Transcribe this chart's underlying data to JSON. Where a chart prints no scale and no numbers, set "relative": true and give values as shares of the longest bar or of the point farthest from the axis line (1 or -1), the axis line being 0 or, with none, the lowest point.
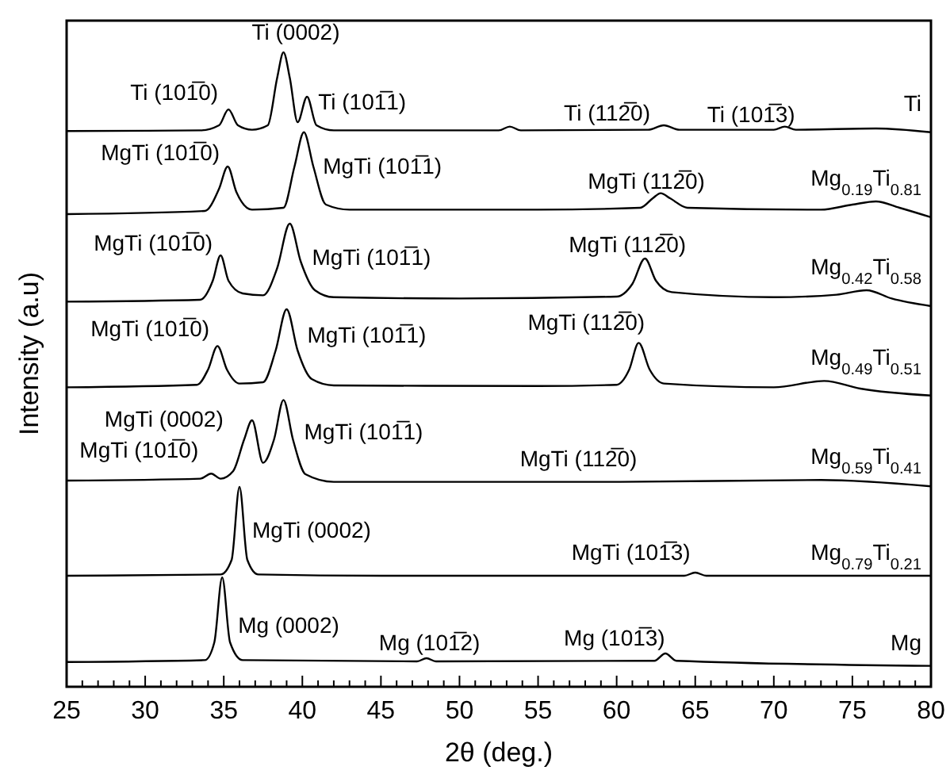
{
  "chart_data": {
    "type": "line",
    "relative": true,
    "xlabel": "2θ (deg.)",
    "ylabel": "Intensity (a.u)",
    "xlim": [
      25,
      80
    ],
    "xticks": [
      25,
      30,
      35,
      40,
      45,
      50,
      55,
      60,
      65,
      70,
      75,
      80
    ],
    "series": [
      {
        "name": "Ti",
        "color": "#000000",
        "x": [
          25,
          33.5,
          34.7,
          35.3,
          35.9,
          36.8,
          37.8,
          38.4,
          38.8,
          39.2,
          39.7,
          40.3,
          40.9,
          42,
          52.5,
          53.2,
          53.9,
          62,
          63,
          64,
          70,
          70.7,
          71.4,
          76.5,
          80
        ],
        "values": [
          0.876,
          0.877,
          0.885,
          0.91,
          0.885,
          0.878,
          0.885,
          0.96,
          1.0,
          0.96,
          0.89,
          0.93,
          0.885,
          0.877,
          0.877,
          0.883,
          0.877,
          0.878,
          0.885,
          0.878,
          0.878,
          0.883,
          0.878,
          0.88,
          0.874
        ]
      },
      {
        "name": "Mg$_{0.19}$Ti$_{0.81}$",
        "color": "#000000",
        "x": [
          25,
          33.8,
          34.7,
          35.25,
          35.8,
          36.8,
          38.8,
          39.5,
          40.1,
          40.7,
          41.5,
          43,
          55,
          61.5,
          62.3,
          62.8,
          63.4,
          64.5,
          73,
          75,
          76.5,
          78,
          80
        ],
        "values": [
          0.745,
          0.75,
          0.785,
          0.82,
          0.78,
          0.752,
          0.755,
          0.82,
          0.874,
          0.82,
          0.76,
          0.752,
          0.752,
          0.755,
          0.77,
          0.778,
          0.77,
          0.755,
          0.752,
          0.76,
          0.765,
          0.755,
          0.74
        ]
      },
      {
        "name": "Mg$_{0.42}$Ti$_{0.58}$",
        "color": "#000000",
        "x": [
          25,
          33.5,
          34.3,
          34.8,
          35.3,
          36.2,
          37.5,
          38.4,
          39.2,
          39.9,
          40.8,
          42,
          50,
          60,
          61,
          61.8,
          62.5,
          63.5,
          70,
          74,
          75.9,
          77.5,
          80
        ],
        "values": [
          0.607,
          0.61,
          0.64,
          0.68,
          0.64,
          0.62,
          0.617,
          0.66,
          0.73,
          0.67,
          0.625,
          0.614,
          0.612,
          0.615,
          0.635,
          0.675,
          0.64,
          0.622,
          0.614,
          0.618,
          0.625,
          0.612,
          0.6
        ]
      },
      {
        "name": "Mg$_{0.49}$Ti$_{0.51}$",
        "color": "#000000",
        "x": [
          25,
          33.3,
          34.0,
          34.6,
          35.2,
          36.0,
          37.5,
          38.3,
          39.0,
          39.7,
          40.6,
          42,
          55,
          60,
          60.8,
          61.4,
          62.1,
          63,
          70,
          73.2,
          75.5,
          80
        ],
        "values": [
          0.472,
          0.476,
          0.5,
          0.537,
          0.5,
          0.478,
          0.48,
          0.53,
          0.595,
          0.53,
          0.485,
          0.475,
          0.474,
          0.476,
          0.5,
          0.542,
          0.5,
          0.478,
          0.472,
          0.482,
          0.47,
          0.459
        ]
      },
      {
        "name": "Mg$_{0.59}$Ti$_{0.41}$",
        "color": "#000000",
        "x": [
          25,
          33.5,
          34.2,
          34.8,
          35.6,
          36.3,
          36.8,
          37.5,
          38.2,
          38.8,
          39.4,
          40.2,
          42,
          60,
          73,
          80
        ],
        "values": [
          0.325,
          0.328,
          0.336,
          0.328,
          0.34,
          0.39,
          0.42,
          0.353,
          0.39,
          0.452,
          0.39,
          0.335,
          0.323,
          0.323,
          0.326,
          0.316
        ]
      },
      {
        "name": "Mg$_{0.79}$Ti$_{0.21}$",
        "color": "#000000",
        "x": [
          25,
          34.8,
          35.5,
          36.0,
          36.5,
          37.2,
          45,
          64.3,
          65,
          65.7,
          80
        ],
        "values": [
          0.175,
          0.177,
          0.2,
          0.315,
          0.2,
          0.177,
          0.175,
          0.175,
          0.18,
          0.175,
          0.175
        ]
      },
      {
        "name": "Mg",
        "color": "#000000",
        "x": [
          25,
          33.8,
          34.4,
          34.9,
          35.4,
          36.2,
          47.3,
          47.9,
          48.5,
          62.4,
          63.1,
          63.8,
          80
        ],
        "values": [
          0.039,
          0.042,
          0.07,
          0.1725,
          0.07,
          0.042,
          0.04,
          0.045,
          0.04,
          0.041,
          0.0525,
          0.041,
          0.033
        ]
      }
    ],
    "annotations": [
      {
        "text": "Ti (0002)",
        "x": 38.8,
        "y": 1.0
      },
      {
        "text": "Ti (101̅0)",
        "x": 35.3,
        "y": 0.91
      },
      {
        "text": "Ti (101̅1)",
        "x": 40.3,
        "y": 0.93
      },
      {
        "text": "Ti (112̅0)",
        "x": 63,
        "y": 0.885
      },
      {
        "text": "Ti (101̅3)",
        "x": 70.7,
        "y": 0.883
      },
      {
        "text": "MgTi (101̅0)",
        "x": 35.25,
        "y": 0.82
      },
      {
        "text": "MgTi (101̅1)",
        "x": 40.1,
        "y": 0.874
      },
      {
        "text": "MgTi (112̅0)",
        "x": 62.8,
        "y": 0.778
      },
      {
        "text": "MgTi (101̅0)",
        "x": 34.8,
        "y": 0.68
      },
      {
        "text": "MgTi (101̅1)",
        "x": 39.2,
        "y": 0.73
      },
      {
        "text": "MgTi (112̅0)",
        "x": 61.8,
        "y": 0.675
      },
      {
        "text": "MgTi (101̅0)",
        "x": 34.6,
        "y": 0.537
      },
      {
        "text": "MgTi (101̅1)",
        "x": 39.0,
        "y": 0.595
      },
      {
        "text": "MgTi (112̅0)",
        "x": 61.4,
        "y": 0.542
      },
      {
        "text": "MgTi (0002)",
        "x": 36.8,
        "y": 0.42
      },
      {
        "text": "MgTi (101̅0)",
        "x": 34.2,
        "y": 0.336
      },
      {
        "text": "MgTi (101̅1)",
        "x": 38.8,
        "y": 0.452
      },
      {
        "text": "MgTi (112̅0)",
        "x": 60,
        "y": 0.323
      },
      {
        "text": "MgTi (0002)",
        "x": 36.0,
        "y": 0.315
      },
      {
        "text": "MgTi (101̅3)",
        "x": 65,
        "y": 0.18
      },
      {
        "text": "Mg (0002)",
        "x": 34.9,
        "y": 0.1725
      },
      {
        "text": "Mg (101̅2)",
        "x": 47.9,
        "y": 0.045
      },
      {
        "text": "Mg (101̅3)",
        "x": 63.1,
        "y": 0.0525
      }
    ]
  }
}
